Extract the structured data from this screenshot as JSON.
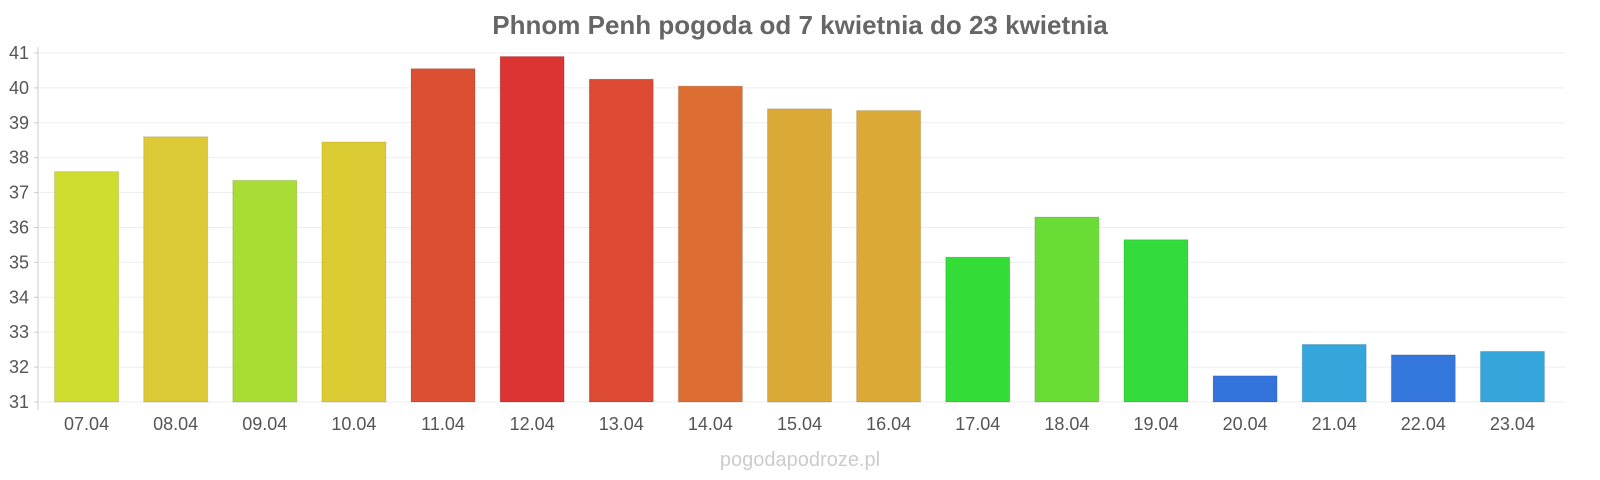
{
  "chart_data": {
    "type": "bar",
    "title": "Phnom Penh pogoda od 7 kwietnia do 23 kwietnia",
    "categories": [
      "07.04",
      "08.04",
      "09.04",
      "10.04",
      "11.04",
      "12.04",
      "13.04",
      "14.04",
      "15.04",
      "16.04",
      "17.04",
      "18.04",
      "19.04",
      "20.04",
      "21.04",
      "22.04",
      "23.04"
    ],
    "values": [
      37.6,
      38.6,
      37.35,
      38.45,
      40.55,
      40.9,
      40.25,
      40.05,
      39.4,
      39.35,
      35.15,
      36.3,
      35.65,
      31.75,
      32.65,
      32.35,
      32.45
    ],
    "colors": [
      "#cfdc30",
      "#dbc935",
      "#a9dc35",
      "#dbcc33",
      "#dc4f33",
      "#dc3333",
      "#dc4a33",
      "#dc6e33",
      "#dba935",
      "#dba935",
      "#33dc36",
      "#69dc36",
      "#33dc3c",
      "#3373dc",
      "#35a6dc",
      "#3377dc",
      "#35a6dc"
    ],
    "yticks": [
      "31",
      "32",
      "33",
      "34",
      "35",
      "36",
      "37",
      "38",
      "39",
      "40",
      "41"
    ],
    "ylim": [
      31,
      41
    ],
    "xlabel": "",
    "ylabel": "",
    "grid": true,
    "legend": "none"
  },
  "footer": {
    "credit": "pogodapodroze.pl"
  }
}
